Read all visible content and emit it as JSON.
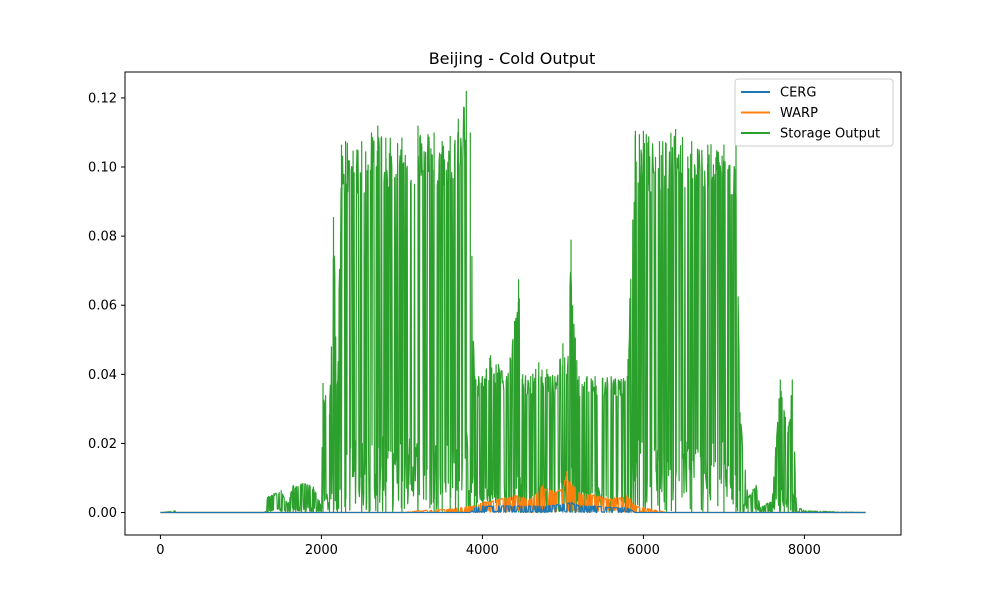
{
  "chart_data": {
    "type": "line",
    "title": "Beijing - Cold Output",
    "xlabel": "",
    "ylabel": "",
    "xlim": [
      -440,
      9200
    ],
    "ylim": [
      -0.0065,
      0.1275
    ],
    "x_ticks": [
      0,
      2000,
      4000,
      6000,
      8000
    ],
    "x_tick_labels": [
      "0",
      "2000",
      "4000",
      "6000",
      "8000"
    ],
    "y_ticks": [
      0.0,
      0.02,
      0.04,
      0.06,
      0.08,
      0.1,
      0.12
    ],
    "y_tick_labels": [
      "0.00",
      "0.02",
      "0.04",
      "0.06",
      "0.08",
      "0.10",
      "0.12"
    ],
    "grid": false,
    "legend_position": "upper right",
    "colors": {
      "CERG": "#1f77b4",
      "WARP": "#ff7f0e",
      "Storage Output": "#2ca02c"
    },
    "series": [
      {
        "name": "CERG",
        "description_x": "hourly index 0-8760",
        "x": [
          0,
          3850,
          3900,
          4000,
          4200,
          4400,
          4600,
          4800,
          5000,
          5100,
          5200,
          5400,
          5600,
          5800,
          5900,
          6300,
          8760
        ],
        "y_max": [
          0,
          0,
          0.0015,
          0.002,
          0.002,
          0.002,
          0.002,
          0.002,
          0.0025,
          0.003,
          0.002,
          0.002,
          0.0015,
          0.0015,
          0,
          0,
          0
        ]
      },
      {
        "name": "WARP",
        "x": [
          0,
          3000,
          3200,
          3600,
          3900,
          4000,
          4200,
          4400,
          4600,
          4750,
          4900,
          5000,
          5050,
          5100,
          5200,
          5400,
          5600,
          5800,
          5900,
          6100,
          6300,
          8760
        ],
        "y_max": [
          0,
          0,
          0.0005,
          0.001,
          0.002,
          0.003,
          0.004,
          0.005,
          0.004,
          0.008,
          0.006,
          0.007,
          0.012,
          0.009,
          0.006,
          0.005,
          0.004,
          0.005,
          0.002,
          0.001,
          0,
          0
        ]
      },
      {
        "name": "Storage Output",
        "x": [
          0,
          180,
          200,
          1300,
          1330,
          1500,
          1580,
          1650,
          1800,
          1900,
          2000,
          2020,
          2100,
          2150,
          2200,
          2250,
          2300,
          2500,
          2700,
          2800,
          3000,
          3200,
          3400,
          3500,
          3600,
          3700,
          3800,
          3850,
          3900,
          4000,
          4100,
          4200,
          4300,
          4400,
          4450,
          4500,
          4600,
          4700,
          4800,
          4900,
          5000,
          5050,
          5100,
          5120,
          5200,
          5300,
          5400,
          5600,
          5800,
          5900,
          5950,
          6000,
          6200,
          6400,
          6600,
          6800,
          7000,
          7150,
          7200,
          7300,
          7400,
          7450,
          7600,
          7700,
          7750,
          7800,
          7850,
          7900,
          8000,
          8760
        ],
        "y_max": [
          0,
          0.0005,
          0,
          0,
          0.0045,
          0.0065,
          0.0025,
          0.008,
          0.0085,
          0.0075,
          0.002,
          0.0375,
          0.0285,
          0.0855,
          0.038,
          0.1065,
          0.1075,
          0.1075,
          0.112,
          0.1085,
          0.1085,
          0.112,
          0.11,
          0.1075,
          0.109,
          0.114,
          0.122,
          0.11,
          0.0395,
          0.0395,
          0.0455,
          0.043,
          0.0395,
          0.0555,
          0.0675,
          0.04,
          0.0395,
          0.0435,
          0.0415,
          0.0395,
          0.049,
          0.0395,
          0.079,
          0.06,
          0.0395,
          0.0395,
          0.0395,
          0.0395,
          0.0395,
          0.1105,
          0.1095,
          0.1105,
          0.1075,
          0.111,
          0.1075,
          0.1065,
          0.1065,
          0.1065,
          0.029,
          0.0045,
          0.008,
          0.0015,
          0.0035,
          0.0385,
          0.029,
          0.025,
          0.0385,
          0.002,
          0.0005,
          0
        ]
      }
    ]
  }
}
